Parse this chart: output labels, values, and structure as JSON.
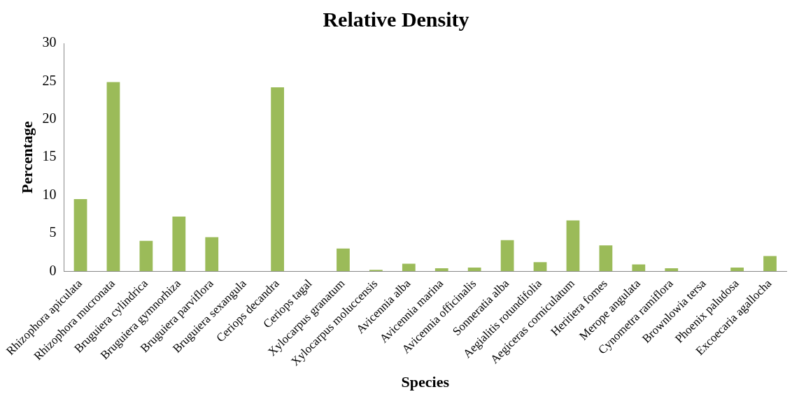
{
  "chart_data": {
    "type": "bar",
    "title": "Relative Density",
    "xlabel": "Species",
    "ylabel": "Percentage",
    "categories": [
      "Rhizophora apiculata",
      "Rhizophora mucronata",
      "Bruguiera cylindrica",
      "Bruguiera gymnorhiza",
      "Bruguiera parviflora",
      "Bruguiera sexangula",
      "Ceriops decandra",
      "Ceriops tagal",
      "Xylocarpus granatum",
      "Xylocarpus moluccensis",
      "Avicennia alba",
      "Avicennia marina",
      "Avicennia officinalis",
      "Sonneratia alba",
      "Aegialitis rotundifolia",
      "Aegiceras corniculatum",
      "Heritiera fomes",
      "Merope angulata",
      "Cynometra ramiflora",
      "Brownlowia tersa",
      "Phoenix paludosa",
      "Excoecaria agallocha"
    ],
    "values": [
      9.5,
      24.9,
      4.0,
      7.2,
      4.5,
      0,
      24.2,
      0,
      3.0,
      0.2,
      1.0,
      0.4,
      0.5,
      4.1,
      1.2,
      6.7,
      3.4,
      0.9,
      0.4,
      0,
      0.5,
      2.0
    ],
    "color": "#9bbb59",
    "ylim": [
      0,
      30
    ],
    "yticks": [
      0,
      5,
      10,
      15,
      20,
      25,
      30
    ],
    "grid": false,
    "legend": false
  }
}
